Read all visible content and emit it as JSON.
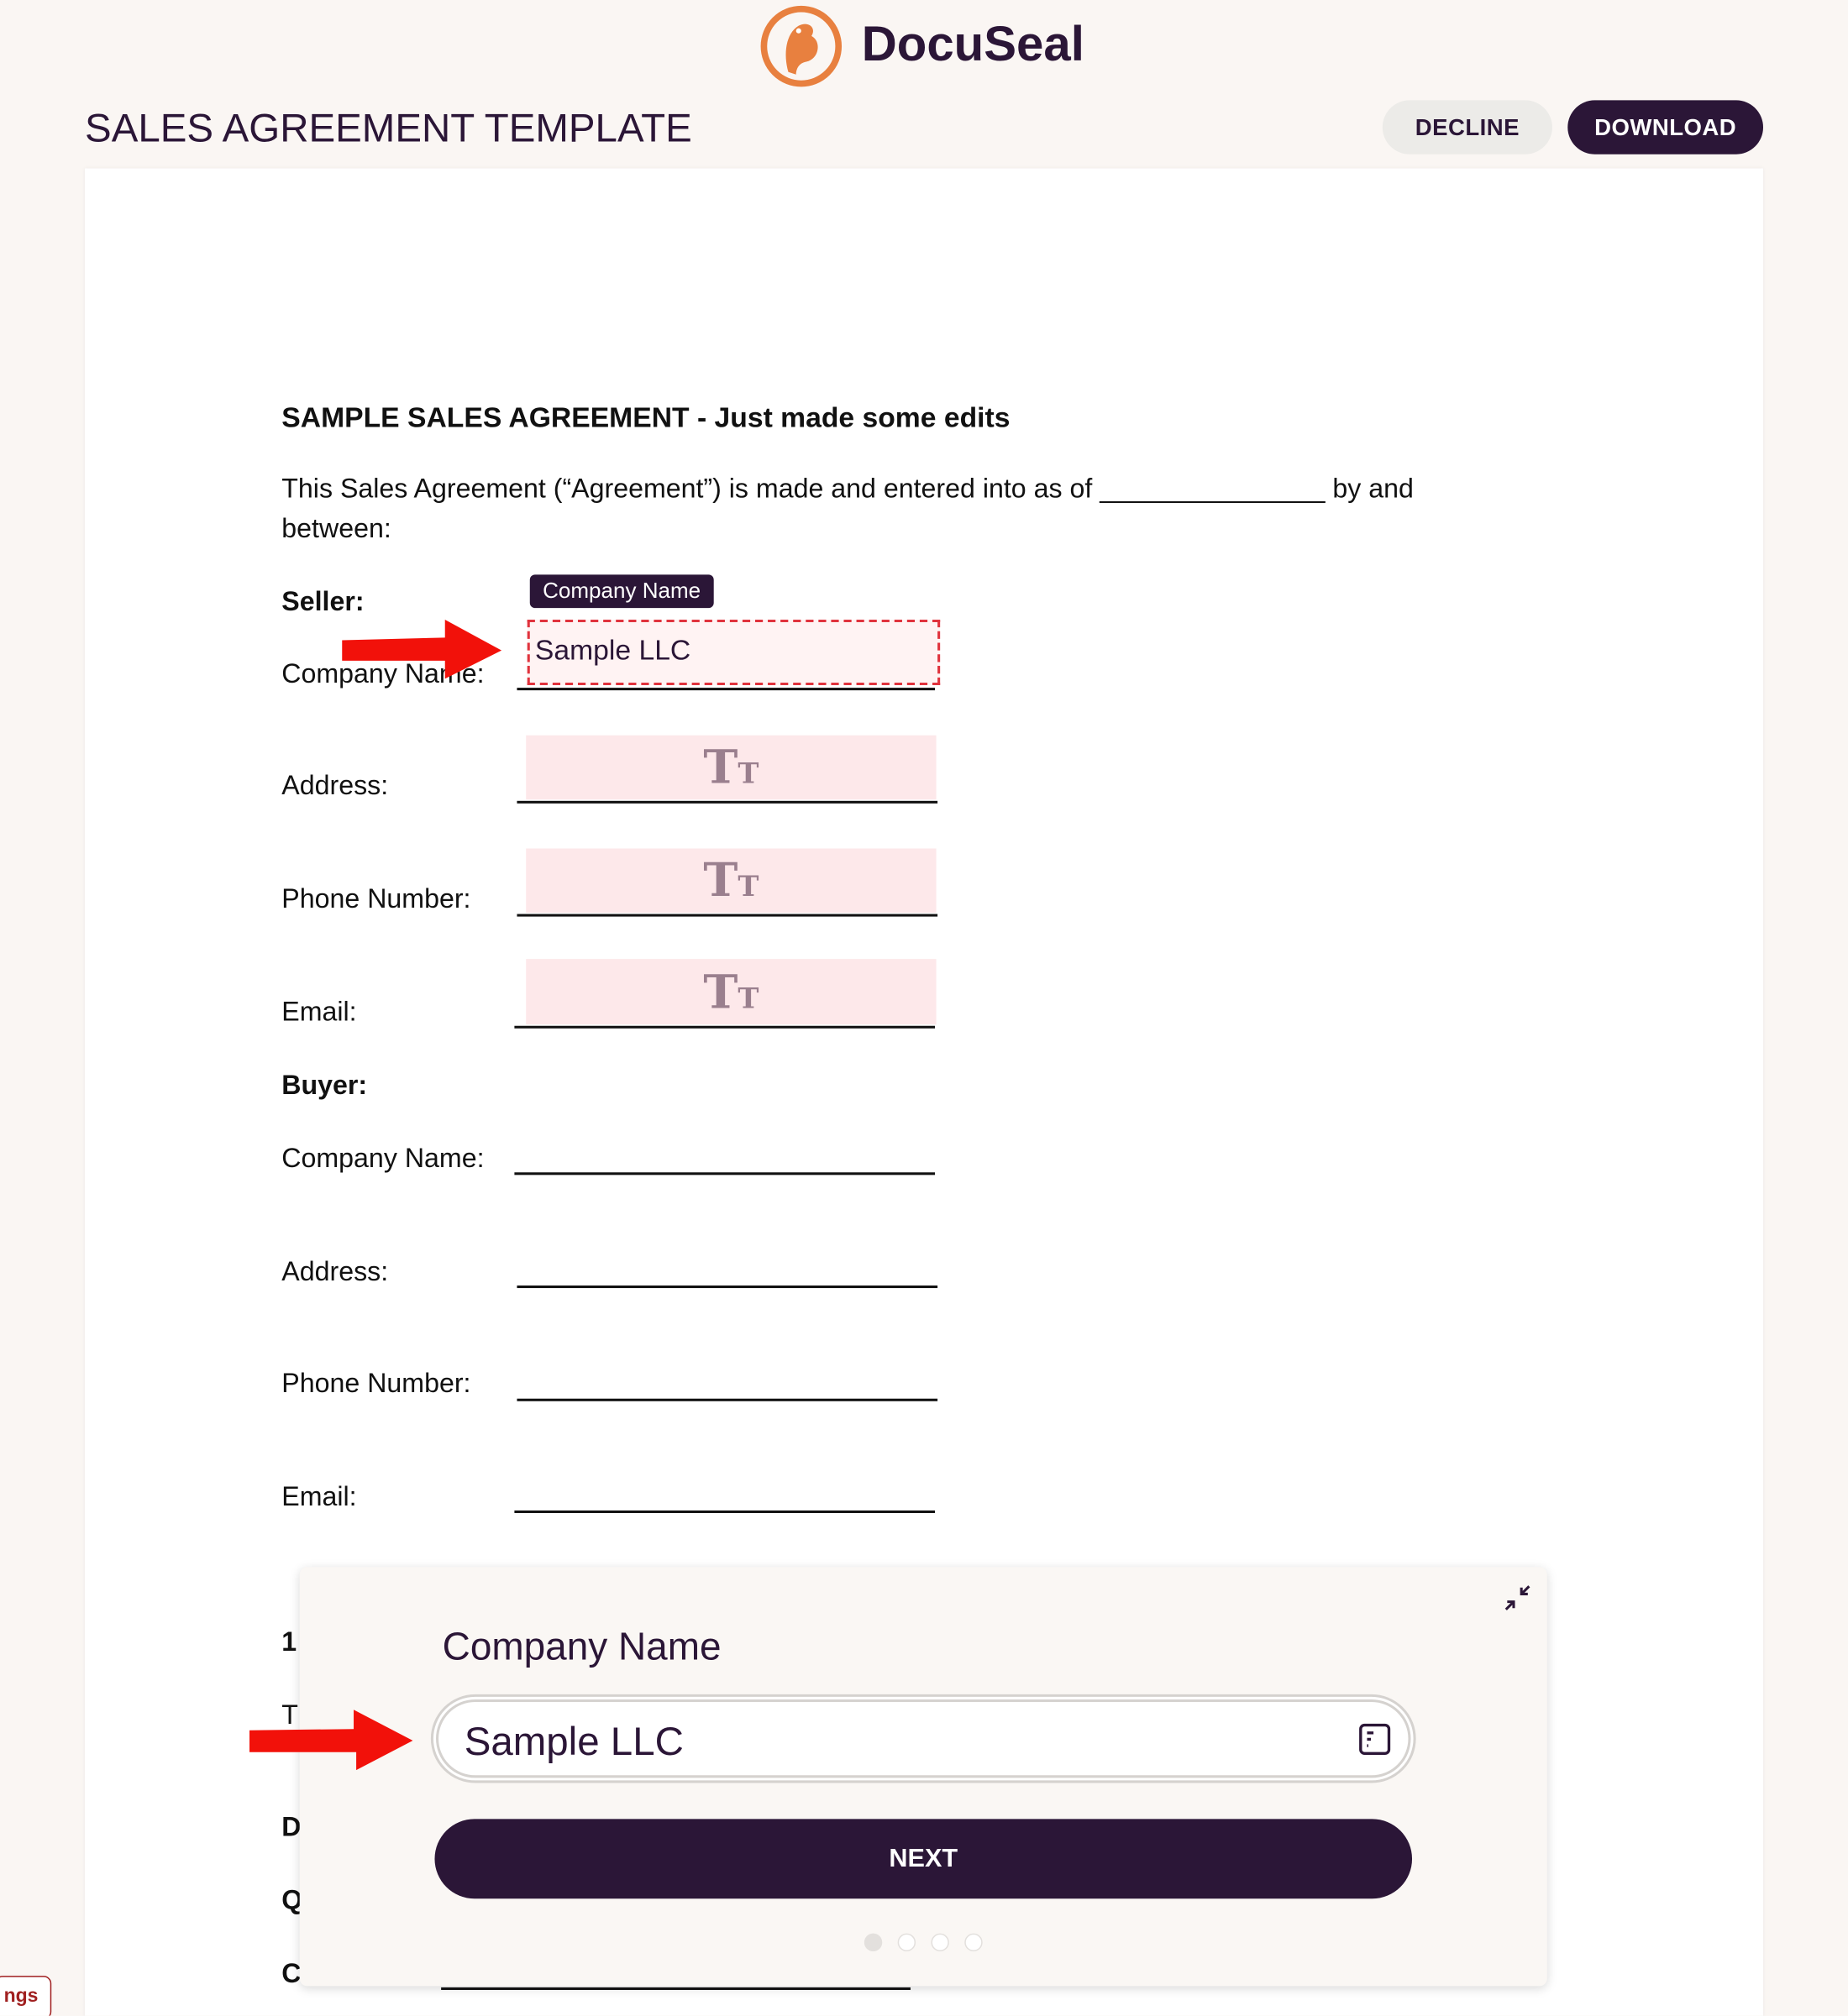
{
  "header": {
    "brand": "DocuSeal",
    "title": "SALES AGREEMENT TEMPLATE",
    "decline_label": "DECLINE",
    "download_label": "DOWNLOAD",
    "brand_color": "#2b1637",
    "logo_color": "#e8803f"
  },
  "document": {
    "heading": "SAMPLE SALES AGREEMENT - Just made some edits",
    "intro_line1": "This Sales Agreement (“Agreement”) is made and entered into as of _______________ by and",
    "intro_line2": "between:",
    "seller": {
      "label": "Seller:",
      "company": "Company Name:",
      "address": "Address:",
      "phone": "Phone Number:",
      "email": "Email:"
    },
    "buyer": {
      "label": "Buyer:",
      "company": "Company Name:",
      "address": "Address:",
      "phone": "Phone Number:",
      "email": "Email:"
    },
    "field_tag": "Company Name",
    "field_value": "Sample LLC",
    "text_field_icon": "Tт",
    "obscured_letters": [
      "1",
      "T",
      "D",
      "Q",
      "C"
    ]
  },
  "modal": {
    "label": "Company Name",
    "input_value": "Sample LLC",
    "next_label": "NEXT",
    "steps_total": 4,
    "current_step": 1
  },
  "corner_badge": "ngs"
}
